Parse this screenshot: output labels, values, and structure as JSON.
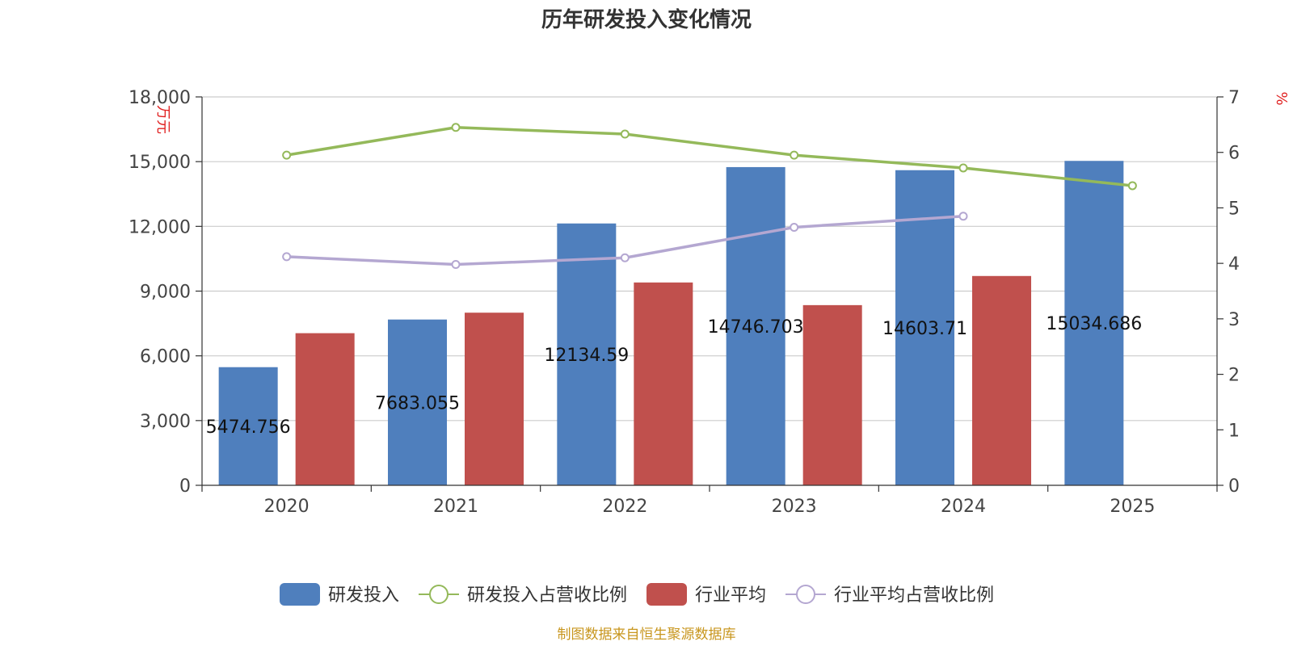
{
  "chart_data": {
    "type": "bar",
    "title": "历年研发投入变化情况",
    "categories": [
      "2020",
      "2021",
      "2022",
      "2023",
      "2024",
      "2025"
    ],
    "left_axis": {
      "unit": "万元",
      "range": [
        0,
        18000
      ],
      "ticks": [
        "0",
        "3,000",
        "6,000",
        "9,000",
        "12,000",
        "15,000",
        "18,000"
      ]
    },
    "right_axis": {
      "unit": "%",
      "range": [
        0,
        7
      ],
      "ticks": [
        "0",
        "1",
        "2",
        "3",
        "4",
        "5",
        "6",
        "7"
      ]
    },
    "series": [
      {
        "name": "研发投入",
        "type": "bar",
        "axis": "left",
        "color": "#4f7fbd",
        "values": [
          5474.756,
          7683.055,
          12134.59,
          14746.703,
          14603.71,
          15034.686
        ],
        "labels": [
          "5474.756",
          "7683.055",
          "12134.59",
          "14746.703",
          "14603.71",
          "15034.686"
        ]
      },
      {
        "name": "研发投入占营收比例",
        "type": "line",
        "axis": "right",
        "color": "#94b95a",
        "values": [
          5.95,
          6.45,
          6.33,
          5.95,
          5.72,
          5.4
        ]
      },
      {
        "name": "行业平均",
        "type": "bar",
        "axis": "left",
        "color": "#c0504d",
        "values": [
          7050,
          8000,
          9400,
          8350,
          9700,
          null
        ]
      },
      {
        "name": "行业平均占营收比例",
        "type": "line",
        "axis": "right",
        "color": "#b4a7d1",
        "values": [
          4.12,
          3.98,
          4.1,
          4.65,
          4.85,
          null
        ]
      }
    ],
    "grid": true,
    "legend": "bottom"
  },
  "source": "制图数据来自恒生聚源数据库"
}
